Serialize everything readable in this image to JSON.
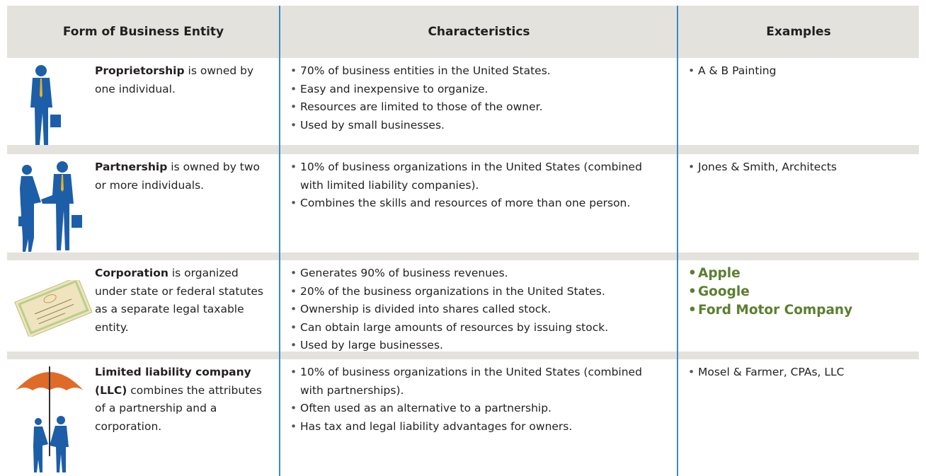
{
  "table": {
    "headers": [
      "Form of Business Entity",
      "Characteristics",
      "Examples"
    ],
    "rows": [
      {
        "entity": "Proprietorship",
        "description": "is owned by one individual.",
        "characteristics": [
          "70% of business entities in the United States.",
          "Easy and inexpensive to organize.",
          "Resources are limited to those of the owner.",
          "Used by small businesses."
        ],
        "examples": [
          "A & B Painting"
        ]
      },
      {
        "entity": "Partnership",
        "description": "is owned by two or more individuals.",
        "characteristics": [
          "10% of business organizations in the United States (combined with limited liability companies).",
          "Combines the skills and resources of more than one person."
        ],
        "examples": [
          "Jones & Smith, Architects"
        ]
      },
      {
        "entity": "Corporation",
        "description": "is organized under state or federal statutes as a separate legal taxable entity.",
        "characteristics": [
          "Generates 90% of business revenues.",
          "20% of the business organizations in the United States.",
          "Ownership is divided into shares called stock.",
          "Can obtain large amounts of resources by issuing stock.",
          "Used by large businesses."
        ],
        "examples": [
          "Apple",
          "Google",
          "Ford Motor Company"
        ]
      },
      {
        "entity": "Limited liability company (LLC)",
        "description": "combines the attributes of a partnership and a corporation.",
        "characteristics": [
          "10% of business organizations in the United States (combined with partnerships).",
          "Often used as an alternative to a partnership.",
          "Has tax and legal liability advantages for owners."
        ],
        "examples": [
          "Mosel & Farmer, CPAs, LLC"
        ]
      }
    ]
  }
}
